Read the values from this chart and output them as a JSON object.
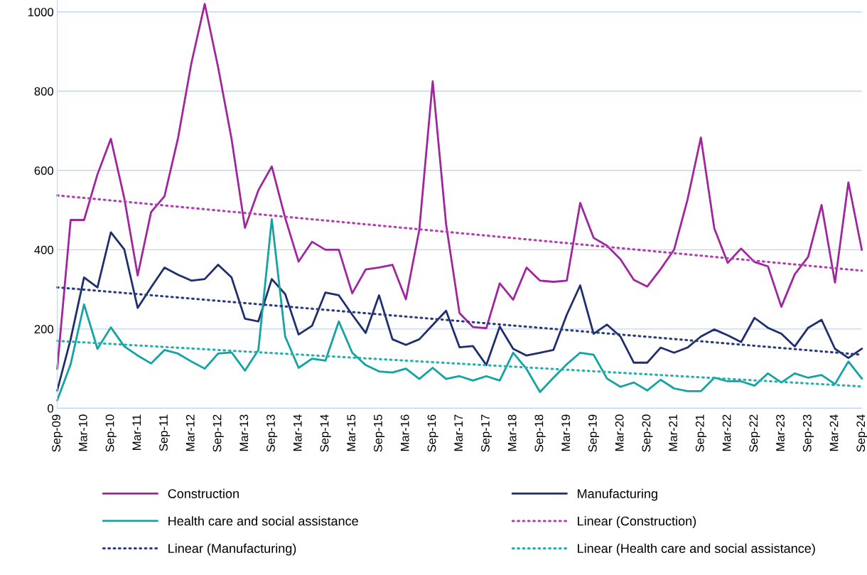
{
  "chart_data": {
    "type": "line",
    "categories": [
      "Sep-09",
      null,
      "Mar-10",
      null,
      "Sep-10",
      null,
      "Mar-11",
      null,
      "Sep-11",
      null,
      "Mar-12",
      null,
      "Sep-12",
      null,
      "Mar-13",
      null,
      "Sep-13",
      null,
      "Mar-14",
      null,
      "Sep-14",
      null,
      "Mar-15",
      null,
      "Sep-15",
      null,
      "Mar-16",
      null,
      "Sep-16",
      null,
      "Mar-17",
      null,
      "Sep-17",
      null,
      "Mar-18",
      null,
      "Sep-18",
      null,
      "Mar-19",
      null,
      "Sep-19",
      null,
      "Mar-20",
      null,
      "Sep-20",
      null,
      "Mar-21",
      null,
      "Sep-21",
      null,
      "Mar-22",
      null,
      "Sep-22",
      null,
      "Mar-23",
      null,
      "Sep-23",
      null,
      "Mar-24",
      null,
      "Sep-24"
    ],
    "series": [
      {
        "name": "Construction",
        "color": "#a0259e",
        "values": [
          100,
          475,
          475,
          590,
          680,
          530,
          335,
          495,
          535,
          680,
          870,
          1020,
          860,
          680,
          455,
          550,
          610,
          480,
          370,
          420,
          400,
          400,
          290,
          350,
          355,
          362,
          275,
          450,
          825,
          464,
          240,
          205,
          202,
          315,
          274,
          355,
          322,
          319,
          322,
          518,
          430,
          410,
          376,
          324,
          307,
          351,
          400,
          526,
          683,
          454,
          367,
          403,
          369,
          358,
          256,
          338,
          382,
          513,
          317,
          570,
          400
        ]
      },
      {
        "name": "Manufacturing",
        "color": "#1f2f6e",
        "values": [
          45,
          174,
          330,
          305,
          444,
          401,
          253,
          305,
          355,
          337,
          322,
          326,
          362,
          330,
          226,
          219,
          326,
          288,
          186,
          208,
          292,
          285,
          236,
          190,
          285,
          174,
          160,
          174,
          210,
          246,
          154,
          157,
          109,
          206,
          150,
          133,
          140,
          147,
          236,
          310,
          188,
          211,
          181,
          115,
          115,
          153,
          140,
          153,
          181,
          199,
          184,
          167,
          228,
          203,
          188,
          156,
          203,
          223,
          150,
          127,
          150
        ]
      },
      {
        "name": "Health care and social assistance",
        "color": "#12a3a3",
        "values": [
          20,
          111,
          262,
          150,
          204,
          156,
          133,
          113,
          147,
          138,
          118,
          100,
          138,
          141,
          95,
          147,
          477,
          181,
          102,
          125,
          120,
          219,
          140,
          109,
          93,
          90,
          100,
          74,
          102,
          74,
          81,
          70,
          81,
          70,
          140,
          99,
          41,
          77,
          111,
          140,
          135,
          75,
          54,
          65,
          45,
          72,
          50,
          43,
          43,
          77,
          68,
          68,
          57,
          88,
          65,
          88,
          77,
          84,
          61,
          118,
          75
        ]
      },
      {
        "name": "Linear (Construction)",
        "color": "#b23fb0",
        "line_style": "dotted",
        "x": [
          "Sep-09",
          "Sep-24"
        ],
        "values": [
          537,
          347
        ]
      },
      {
        "name": "Linear (Manufacturing)",
        "color": "#2a3b80",
        "line_style": "dotted",
        "x": [
          "Sep-09",
          "Sep-24"
        ],
        "values": [
          305,
          135
        ]
      },
      {
        "name": "Linear (Health care and social assistance)",
        "color": "#22b0b0",
        "line_style": "dotted",
        "x": [
          "Sep-09",
          "Sep-24"
        ],
        "values": [
          170,
          55
        ]
      }
    ],
    "ylim": [
      0,
      1030
    ],
    "yticks": [
      0,
      200,
      400,
      600,
      800,
      1000
    ],
    "grid": "y",
    "legend": "bottom",
    "line_style": "solid"
  }
}
